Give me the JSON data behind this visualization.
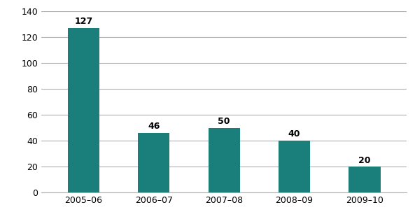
{
  "categories": [
    "2005–06",
    "2006–07",
    "2007–08",
    "2008–09",
    "2009–10"
  ],
  "values": [
    127,
    46,
    50,
    40,
    20
  ],
  "bar_color": "#1a7f7a",
  "ylim": [
    0,
    140
  ],
  "yticks": [
    0,
    20,
    40,
    60,
    80,
    100,
    120,
    140
  ],
  "label_fontsize": 9,
  "tick_fontsize": 9,
  "background_color": "#ffffff",
  "grid_color": "#b0b0b0",
  "bar_width": 0.45
}
